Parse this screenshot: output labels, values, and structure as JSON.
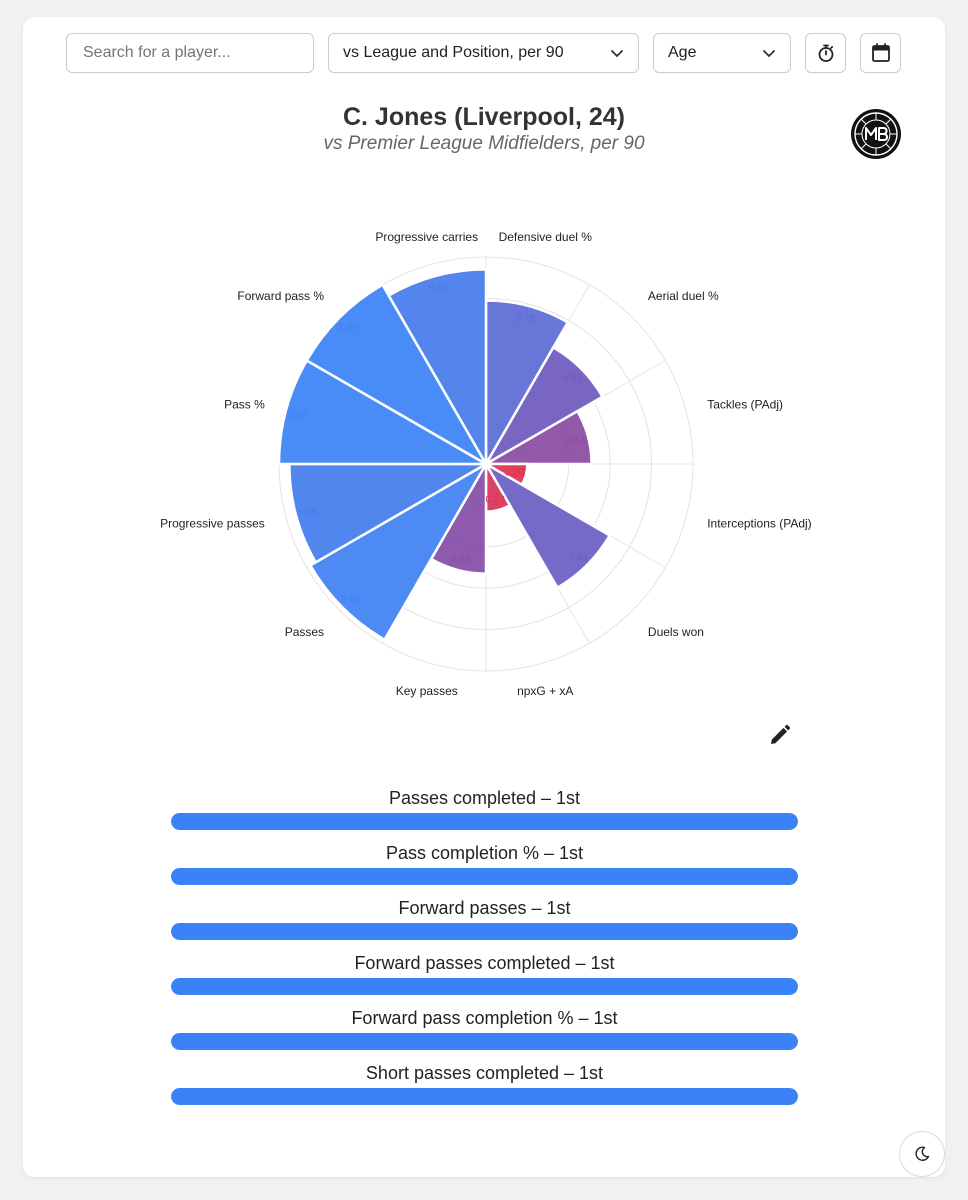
{
  "colors": {
    "page_bg": "#f0f1f3",
    "card_bg": "#ffffff",
    "accent": "#3b82f6",
    "low": "#e0304f",
    "mid": "#7b4fae",
    "high": "#3b82f6",
    "grid": "#e3e3e3"
  },
  "toolbar": {
    "search_placeholder": "Search for a player...",
    "comparison_value": "vs League and Position, per 90",
    "age_value": "Age",
    "timer_icon": "stopwatch-icon",
    "calendar_icon": "calendar-icon"
  },
  "header": {
    "title": "C. Jones (Liverpool, 24)",
    "subtitle": "vs Premier League Midfielders, per 90",
    "logo_icon": "mb-logo-icon"
  },
  "chart_data": {
    "type": "polar-bar",
    "scale": [
      0,
      1
    ],
    "categories": [
      "Defensive duel %",
      "Aerial duel %",
      "Tackles (PAdj)",
      "Interceptions (PAdj)",
      "Duels won",
      "npxG + xA",
      "Key passes",
      "Passes",
      "Progressive passes",
      "Pass %",
      "Forward pass %",
      "Progressive carries"
    ],
    "values": [
      0.79,
      0.65,
      0.51,
      0.2,
      0.69,
      0.23,
      0.53,
      0.98,
      0.95,
      1.0,
      1.0,
      0.94
    ],
    "value_labels": [
      "0.79",
      "0.65",
      "0.51",
      "0.20",
      "0.69",
      "0.23",
      "0.53",
      "0.98",
      "0.95",
      "1.00",
      "1.00",
      "0.94"
    ],
    "grid": true
  },
  "edit_icon": "pencil-icon",
  "percentile_bars": [
    {
      "label": "Passes completed – 1st",
      "value": 1.0
    },
    {
      "label": "Pass completion % – 1st",
      "value": 1.0
    },
    {
      "label": "Forward passes – 1st",
      "value": 1.0
    },
    {
      "label": "Forward passes completed – 1st",
      "value": 1.0
    },
    {
      "label": "Forward pass completion % – 1st",
      "value": 1.0
    },
    {
      "label": "Short passes completed – 1st",
      "value": 1.0
    }
  ],
  "theme_toggle_icon": "moon-icon"
}
